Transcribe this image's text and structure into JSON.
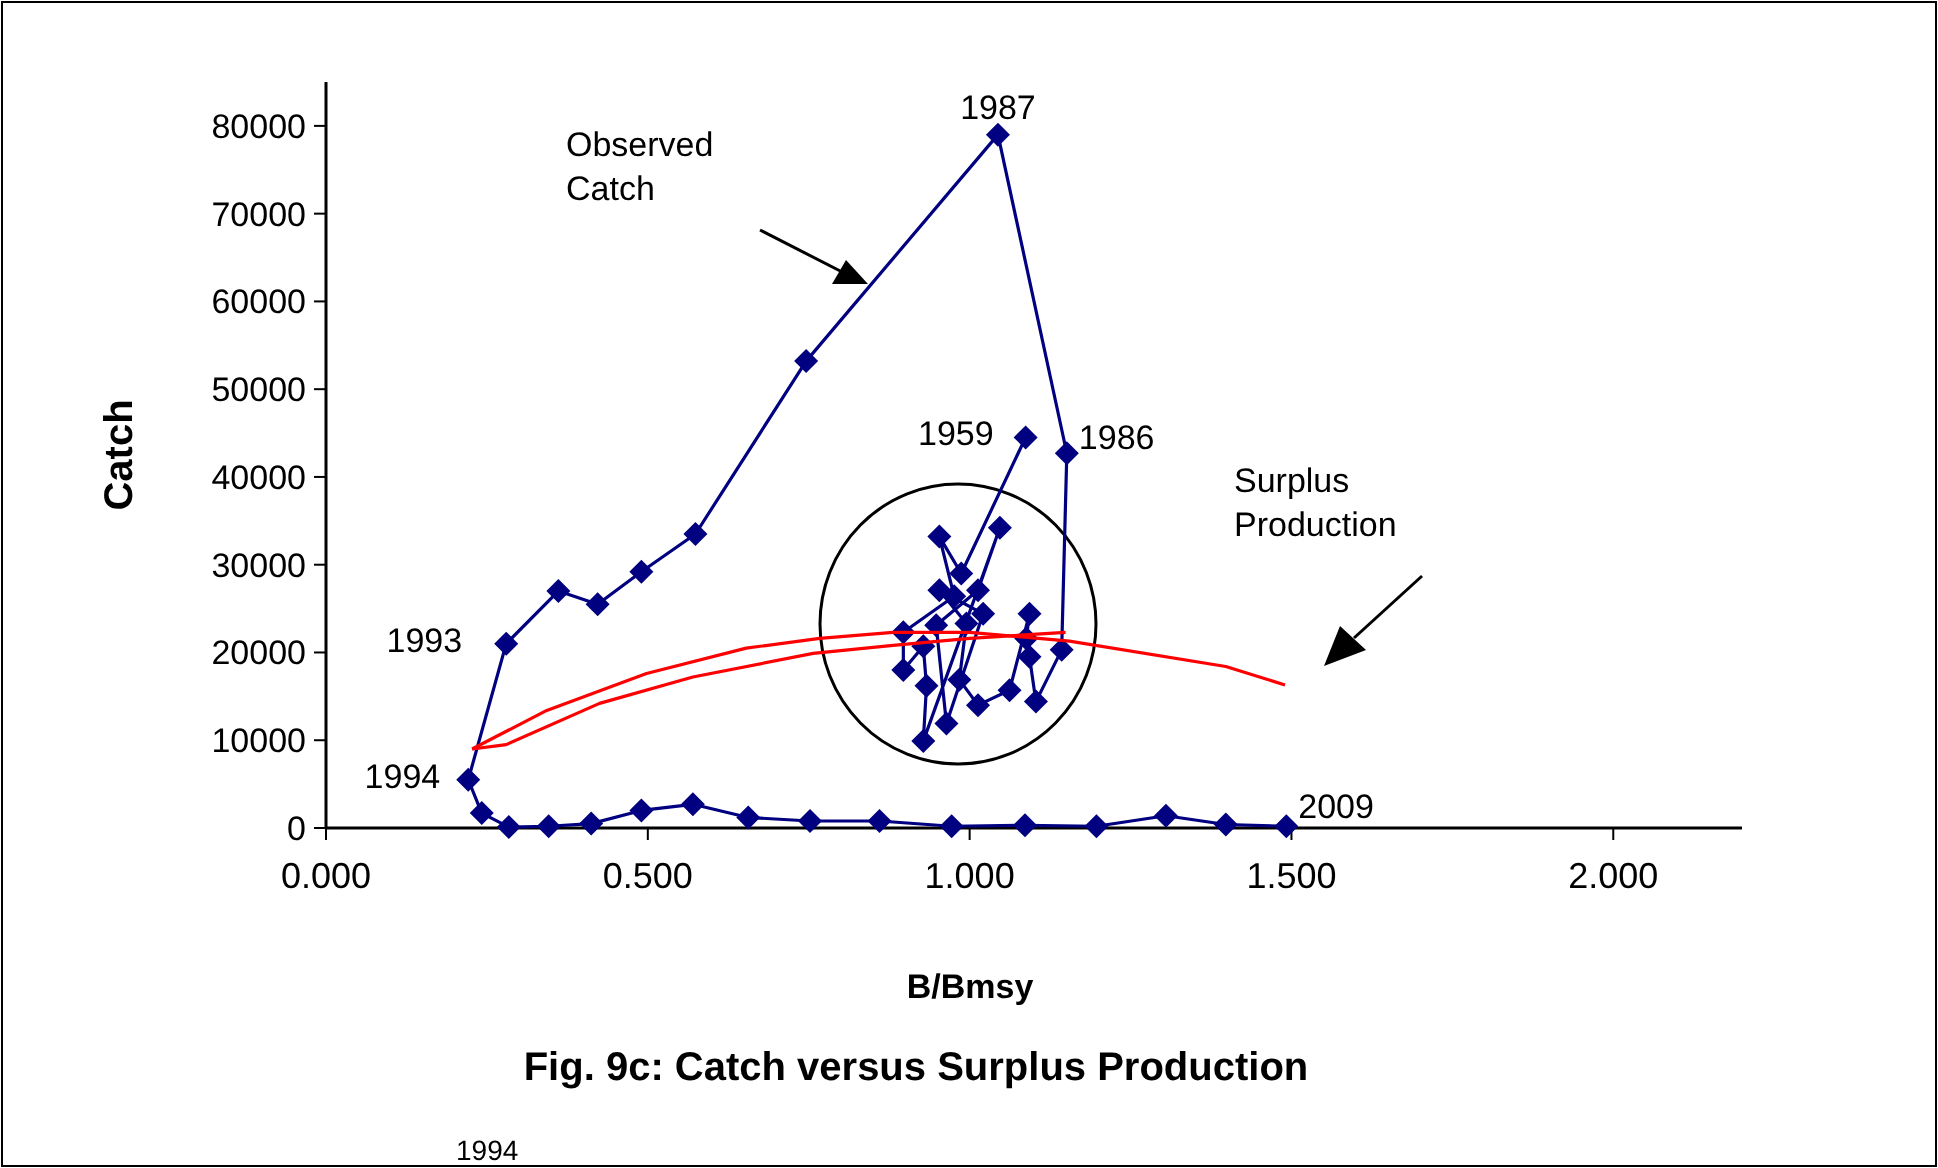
{
  "chart_data": {
    "type": "line",
    "title": "Fig. 9c: Catch versus Surplus Production",
    "xlabel": "B/Bmsy",
    "ylabel": "Catch",
    "xlim": [
      0,
      2.2
    ],
    "xticks": [
      {
        "value": 0,
        "label": "0.000"
      },
      {
        "value": 0.5,
        "label": "0.500"
      },
      {
        "value": 1,
        "label": "1.000"
      },
      {
        "value": 1.5,
        "label": "1.500"
      },
      {
        "value": 2,
        "label": "2.000"
      }
    ],
    "ylim": [
      0,
      85000
    ],
    "yticks": [
      0,
      10000,
      20000,
      30000,
      40000,
      50000,
      60000,
      70000,
      80000
    ],
    "grid": false,
    "series": [
      {
        "color": "#000080",
        "marker": "diamond",
        "x": [
          1.087,
          0.987,
          0.953,
          0.976,
          0.897,
          0.897,
          0.928,
          0.933,
          0.928,
          1.047,
          1.013,
          0.948,
          0.964,
          1.021,
          0.953,
          0.995,
          0.984,
          1.013,
          1.062,
          1.093,
          1.088,
          1.093,
          1.103,
          1.143,
          1.151,
          1.044,
          0.746,
          0.574,
          0.49,
          0.422,
          0.361,
          0.28,
          0.221,
          0.242,
          0.284,
          0.346,
          0.412,
          0.49,
          0.57,
          0.656,
          0.752,
          0.86,
          0.972,
          1.086,
          1.197,
          1.305,
          1.398,
          1.492
        ],
        "values": [
          44500,
          29000,
          33200,
          26400,
          22300,
          18000,
          20700,
          16200,
          9900,
          34200,
          27100,
          23100,
          11900,
          24400,
          27100,
          23300,
          16900,
          14000,
          15700,
          24400,
          21600,
          19500,
          14400,
          20300,
          42700,
          79000,
          53200,
          33500,
          29200,
          25500,
          27000,
          21000,
          5500,
          1700,
          100,
          200,
          500,
          2000,
          2700,
          1200,
          800,
          800,
          200,
          300,
          200,
          1400,
          400,
          200
        ]
      },
      {
        "color": "#ff0000",
        "marker": "none",
        "x": [
          0.227,
          0.343,
          0.498,
          0.653,
          0.767,
          0.881,
          1.0,
          1.155,
          1.398,
          1.49
        ],
        "values": [
          9000,
          13400,
          17600,
          20500,
          21600,
          22300,
          22300,
          21300,
          18400,
          16300
        ]
      },
      {
        "color": "#ff0000",
        "marker": "none",
        "x": [
          0.227,
          0.28,
          0.425,
          0.57,
          0.757,
          0.881,
          1.0,
          1.149
        ],
        "values": [
          9000,
          9500,
          14200,
          17200,
          19900,
          20800,
          21600,
          22300
        ]
      }
    ],
    "annotations": [
      "Observed Catch",
      "Surplus Production",
      {
        "text": "1987",
        "x": 1.044,
        "y": 79000
      },
      {
        "text": "1959",
        "x": 1.087,
        "y": 44500
      },
      {
        "text": "1986",
        "x": 1.151,
        "y": 42700
      },
      {
        "text": "1993",
        "x": 0.28,
        "y": 21000
      },
      {
        "text": "1994",
        "x": 0.221,
        "y": 5500
      },
      {
        "text": "2009",
        "x": 1.492,
        "y": 200
      },
      "1994"
    ]
  }
}
